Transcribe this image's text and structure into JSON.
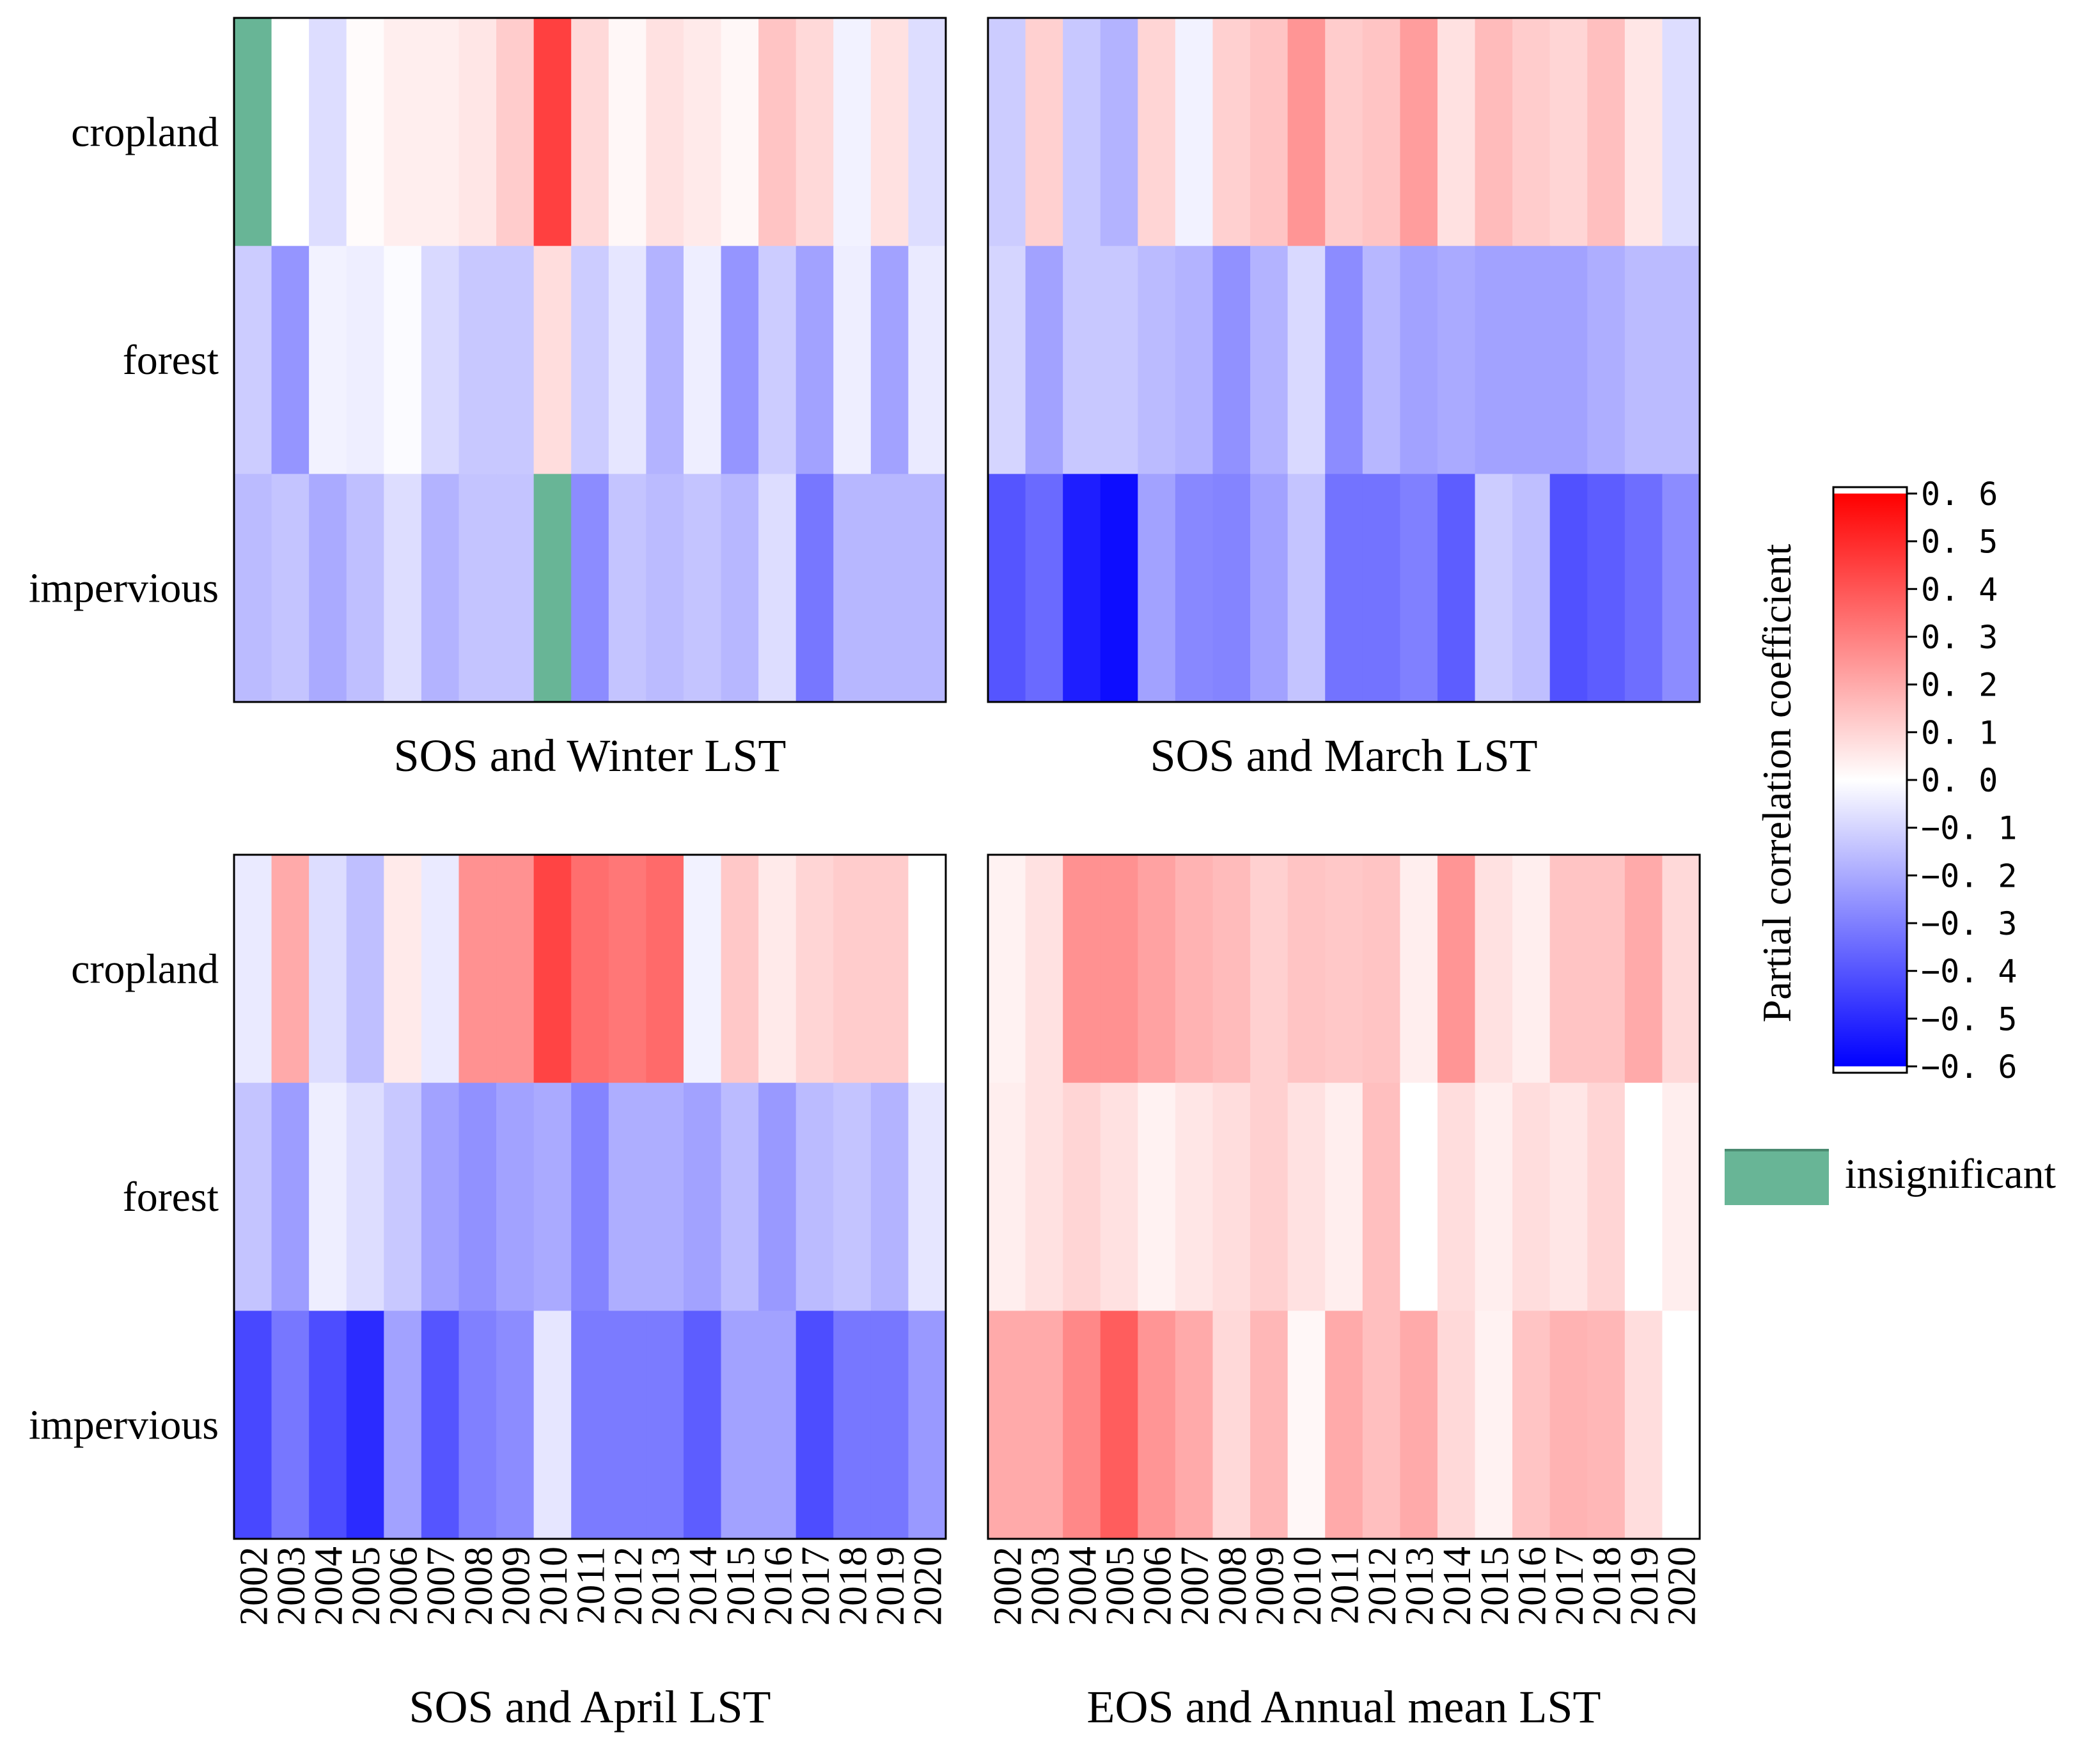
{
  "chart_data": {
    "type": "heatmap",
    "years": [
      "2002",
      "2003",
      "2004",
      "2005",
      "2006",
      "2007",
      "2008",
      "2009",
      "2010",
      "2011",
      "2012",
      "2013",
      "2014",
      "2015",
      "2016",
      "2017",
      "2018",
      "2019",
      "2020"
    ],
    "row_labels": [
      "cropland",
      "forest",
      "impervious"
    ],
    "colorbar": {
      "label": "Partial correlation coefficient",
      "range": [
        -0.6,
        0.6
      ],
      "tick_labels": [
        "0. 6",
        "0. 5",
        "0. 4",
        "0. 3",
        "0. 2",
        "0. 1",
        "0. 0",
        "−0. 1",
        "−0. 2",
        "−0. 3",
        "−0. 4",
        "−0. 5",
        "−0. 6"
      ]
    },
    "legend": {
      "label": "insignificant",
      "color": "#68b596"
    },
    "colors": {
      "negative": "#0000ff",
      "zero": "#ffffff",
      "positive": "#ff0000",
      "insignificant": "#68b596"
    },
    "panels": [
      {
        "title": "SOS and Winter LST",
        "show_years": false,
        "rows": [
          [
            null,
            0.0,
            -0.08,
            0.01,
            0.04,
            0.04,
            0.06,
            0.12,
            0.45,
            0.09,
            0.02,
            0.07,
            0.05,
            0.02,
            0.14,
            0.09,
            -0.03,
            0.07,
            -0.08
          ],
          [
            -0.12,
            -0.25,
            -0.03,
            -0.04,
            -0.01,
            -0.09,
            -0.13,
            -0.13,
            0.08,
            -0.12,
            -0.06,
            -0.18,
            -0.04,
            -0.25,
            -0.12,
            -0.22,
            -0.04,
            -0.22,
            -0.05
          ],
          [
            -0.16,
            -0.14,
            -0.2,
            -0.15,
            -0.08,
            -0.18,
            -0.14,
            -0.14,
            null,
            -0.27,
            -0.14,
            -0.16,
            -0.14,
            -0.17,
            -0.08,
            -0.32,
            -0.17,
            -0.17,
            -0.17
          ]
        ]
      },
      {
        "title": "SOS and March LST",
        "show_years": false,
        "rows": [
          [
            -0.12,
            0.11,
            -0.13,
            -0.18,
            0.1,
            -0.03,
            0.11,
            0.14,
            0.25,
            0.12,
            0.14,
            0.23,
            0.07,
            0.16,
            0.12,
            0.1,
            0.15,
            0.06,
            -0.08
          ],
          [
            -0.1,
            -0.22,
            -0.13,
            -0.13,
            -0.16,
            -0.18,
            -0.26,
            -0.18,
            -0.09,
            -0.27,
            -0.17,
            -0.22,
            -0.2,
            -0.22,
            -0.22,
            -0.22,
            -0.19,
            -0.16,
            -0.16
          ],
          [
            -0.4,
            -0.35,
            -0.53,
            -0.57,
            -0.22,
            -0.28,
            -0.29,
            -0.22,
            -0.14,
            -0.33,
            -0.33,
            -0.3,
            -0.38,
            -0.12,
            -0.15,
            -0.41,
            -0.38,
            -0.34,
            -0.27
          ]
        ]
      },
      {
        "title": "SOS and April LST",
        "show_years": true,
        "rows": [
          [
            -0.05,
            0.2,
            -0.08,
            -0.15,
            0.05,
            -0.05,
            0.26,
            0.26,
            0.44,
            0.34,
            0.32,
            0.35,
            -0.03,
            0.13,
            0.05,
            0.1,
            0.12,
            0.12,
            0.0
          ],
          [
            -0.14,
            -0.23,
            -0.04,
            -0.08,
            -0.13,
            -0.22,
            -0.26,
            -0.22,
            -0.2,
            -0.29,
            -0.19,
            -0.19,
            -0.22,
            -0.16,
            -0.24,
            -0.16,
            -0.14,
            -0.18,
            -0.06
          ],
          [
            -0.43,
            -0.32,
            -0.42,
            -0.5,
            -0.22,
            -0.4,
            -0.3,
            -0.27,
            -0.06,
            -0.31,
            -0.31,
            -0.31,
            -0.38,
            -0.22,
            -0.22,
            -0.42,
            -0.32,
            -0.32,
            -0.24
          ]
        ]
      },
      {
        "title": "EOS and Annual mean LST",
        "show_years": true,
        "rows": [
          [
            0.03,
            0.07,
            0.26,
            0.26,
            0.22,
            0.18,
            0.16,
            0.11,
            0.14,
            0.13,
            0.14,
            0.04,
            0.25,
            0.07,
            0.04,
            0.14,
            0.14,
            0.2,
            0.09
          ],
          [
            0.04,
            0.07,
            0.1,
            0.07,
            0.03,
            0.06,
            0.08,
            0.11,
            0.07,
            0.04,
            0.15,
            0.0,
            0.08,
            0.04,
            0.08,
            0.06,
            0.1,
            0.0,
            0.04
          ],
          [
            0.2,
            0.2,
            0.28,
            0.38,
            0.25,
            0.2,
            0.09,
            0.17,
            0.02,
            0.2,
            0.15,
            0.2,
            0.09,
            0.03,
            0.14,
            0.18,
            0.17,
            0.08,
            0.0
          ]
        ]
      }
    ]
  }
}
